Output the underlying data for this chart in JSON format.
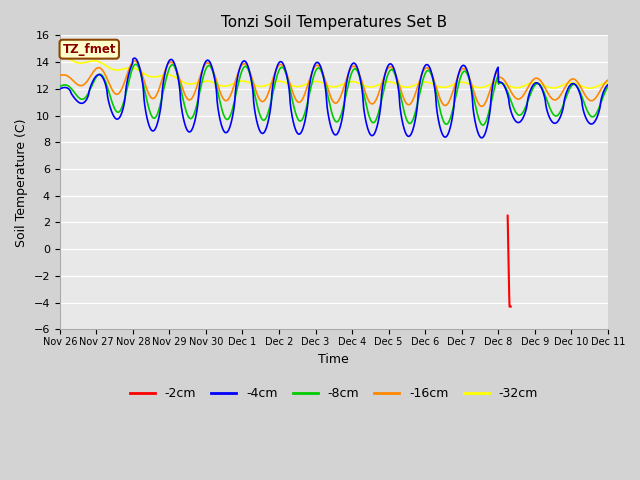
{
  "title": "Tonzi Soil Temperatures Set B",
  "xlabel": "Time",
  "ylabel": "Soil Temperature (C)",
  "ylim": [
    -6,
    16
  ],
  "yticks": [
    -6,
    -4,
    -2,
    0,
    2,
    4,
    6,
    8,
    10,
    12,
    14,
    16
  ],
  "colors": {
    "-2cm": "#ff0000",
    "-4cm": "#0000ff",
    "-8cm": "#00cc00",
    "-16cm": "#ff8800",
    "-32cm": "#ffff00"
  },
  "legend_label": "TZ_fmet",
  "day_labels": [
    "Nov 26",
    "Nov 27",
    "Nov 28",
    "Nov 29",
    "Nov 30",
    "Dec 1",
    "Dec 2",
    "Dec 3",
    "Dec 4",
    "Dec 5",
    "Dec 6",
    "Dec 7",
    "Dec 8",
    "Dec 9",
    "Dec 10",
    "Dec 11"
  ],
  "fig_facecolor": "#d3d3d3",
  "ax_facecolor": "#e8e8e8",
  "grid_color": "#ffffff"
}
